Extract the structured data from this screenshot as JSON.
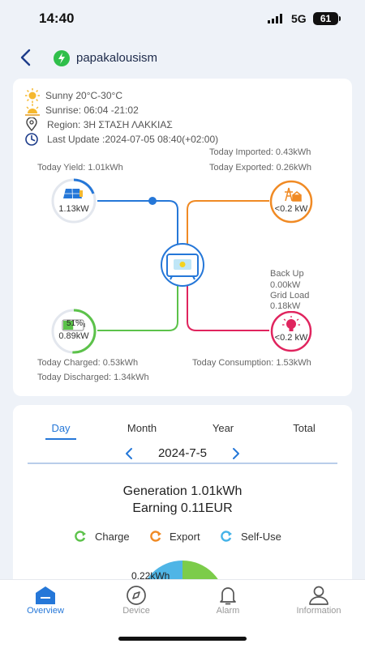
{
  "status": {
    "time": "14:40",
    "network": "5G",
    "battery": "61"
  },
  "header": {
    "title": "papakalousism"
  },
  "weather": {
    "condition": "Sunny 20°C-30°C",
    "sun_times": "Sunrise: 06:04 -21:02",
    "region": "Region: 3Η ΣΤΑΣΗ ΛΑΚΚΙΑΣ",
    "last_update": "Last Update :2024-07-05 08:40(+02:00)"
  },
  "flow": {
    "today_yield": "Today Yield: 1.01kWh",
    "today_imported": "Today Imported: 0.43kWh",
    "today_exported": "Today Exported: 0.26kWh",
    "solar_power": "1.13kW",
    "grid_power": "<0.2 kW",
    "battery_soc": "51%",
    "battery_soc_value": 0.51,
    "battery_power": "0.89kW",
    "backup_label": "Back Up",
    "backup_value": "0.00kW",
    "grid_load_label": "Grid Load",
    "grid_load_value": "0.18kW",
    "load_power": "<0.2 kW",
    "today_charged": "Today Charged: 0.53kWh",
    "today_discharged": "Today Discharged: 1.34kWh",
    "today_consumption": "Today Consumption: 1.53kWh"
  },
  "stats": {
    "tabs": [
      "Day",
      "Month",
      "Year",
      "Total"
    ],
    "active_tab": 0,
    "date": "2024-7-5",
    "generation": "Generation 1.01kWh",
    "earning": "Earning 0.11EUR",
    "legend": [
      {
        "label": "Charge",
        "color": "#5cc24a"
      },
      {
        "label": "Export",
        "color": "#f08a24"
      },
      {
        "label": "Self-Use",
        "color": "#45b3e8"
      }
    ],
    "pie_label": "0.22kWh"
  },
  "nav": [
    {
      "label": "Overview",
      "icon": "overview-icon",
      "active": true
    },
    {
      "label": "Device",
      "icon": "compass-icon",
      "active": false
    },
    {
      "label": "Alarm",
      "icon": "bell-icon",
      "active": false
    },
    {
      "label": "Information",
      "icon": "user-icon",
      "active": false
    }
  ],
  "colors": {
    "accent": "#2577d8",
    "solar": "#2577d8",
    "grid": "#f08a24",
    "battery": "#5cc24a",
    "load": "#e0245e"
  }
}
